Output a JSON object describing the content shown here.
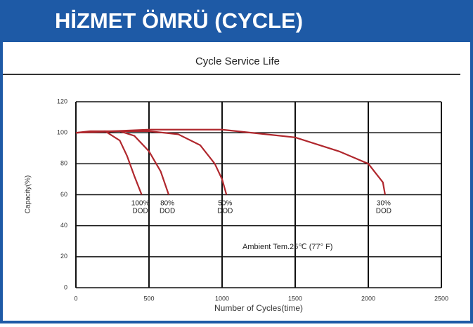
{
  "header": {
    "title": "HİZMET ÖMRÜ (CYCLE)"
  },
  "chart_data": {
    "type": "line",
    "title": "Cycle Service Life",
    "x_label": "Number of Cycles(time)",
    "y_label": "Capacity(%)",
    "annotation": "Ambient Tem.25℃ (77° F)",
    "xlim": [
      0,
      2500
    ],
    "xticks": [
      0,
      500,
      1000,
      1500,
      2000,
      2500
    ],
    "ylim": [
      0,
      120
    ],
    "yticks": [
      0,
      20,
      40,
      60,
      80,
      100,
      120
    ],
    "grid": true,
    "series": [
      {
        "name": "100% DOD",
        "color": "#b0272d",
        "x": [
          0,
          100,
          200,
          300,
          350,
          400,
          450
        ],
        "values": [
          100,
          101,
          101,
          95,
          85,
          72,
          60
        ]
      },
      {
        "name": "80% DOD",
        "color": "#b0272d",
        "x": [
          0,
          200,
          300,
          400,
          500,
          580,
          635
        ],
        "values": [
          100,
          101,
          101,
          98,
          88,
          75,
          60
        ]
      },
      {
        "name": "50% DOD",
        "color": "#b0272d",
        "x": [
          0,
          300,
          500,
          700,
          850,
          950,
          1000,
          1030
        ],
        "values": [
          100,
          101,
          101,
          99,
          92,
          80,
          70,
          60
        ]
      },
      {
        "name": "30% DOD",
        "color": "#b0272d",
        "x": [
          0,
          500,
          1000,
          1500,
          1800,
          2000,
          2100,
          2115
        ],
        "values": [
          100,
          102,
          102,
          97,
          88,
          80,
          68,
          60
        ]
      }
    ]
  }
}
